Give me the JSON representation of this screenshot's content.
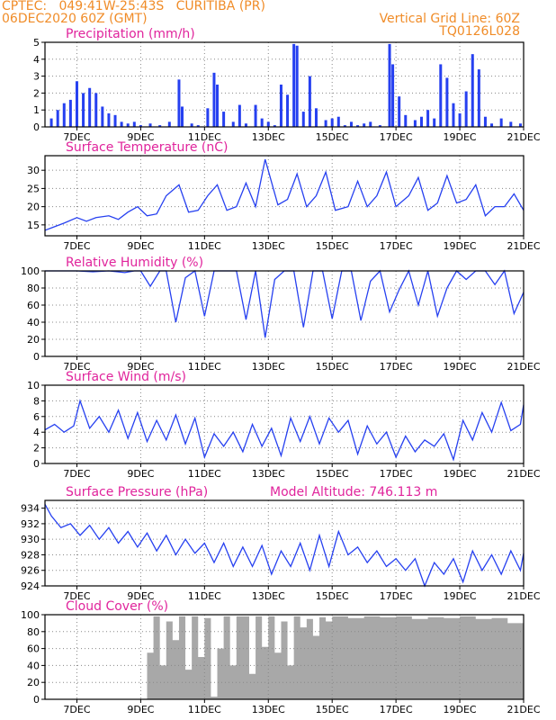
{
  "header": {
    "line1": "CPTEC:   049:41W-25:43S   CURITIBA (PR)",
    "line2": "06DEC2020 60Z (GMT)",
    "grid_label": "Vertical Grid Line: 60Z",
    "code": "TQ0126L028"
  },
  "colors": {
    "header": "#f08c28",
    "title": "#e0249c",
    "series": "#2640f0",
    "cloud": "#a8a8a8"
  },
  "x_axis": {
    "ticks": [
      "7DEC",
      "9DEC",
      "11DEC",
      "13DEC",
      "15DEC",
      "17DEC",
      "19DEC",
      "21DEC"
    ],
    "tick_days": [
      7,
      9,
      11,
      13,
      15,
      17,
      19,
      21
    ],
    "xlim": [
      6.0,
      21.0
    ]
  },
  "chart_data": [
    {
      "type": "bar",
      "title": "Precipitation (mm/h)",
      "ylim": [
        0,
        5
      ],
      "yticks": [
        0,
        1,
        2,
        3,
        4,
        5
      ],
      "grid": true,
      "x": [
        6.2,
        6.4,
        6.6,
        6.8,
        7.0,
        7.2,
        7.4,
        7.6,
        7.8,
        8.0,
        8.2,
        8.4,
        8.6,
        8.8,
        9.0,
        9.3,
        9.6,
        9.9,
        10.2,
        10.3,
        10.6,
        10.8,
        11.1,
        11.3,
        11.4,
        11.6,
        11.9,
        12.1,
        12.3,
        12.6,
        12.8,
        13.0,
        13.2,
        13.4,
        13.6,
        13.8,
        13.9,
        14.1,
        14.3,
        14.5,
        14.8,
        15.0,
        15.2,
        15.4,
        15.6,
        15.8,
        16.0,
        16.2,
        16.5,
        16.8,
        16.9,
        17.1,
        17.3,
        17.6,
        17.8,
        18.0,
        18.2,
        18.4,
        18.6,
        18.8,
        19.0,
        19.2,
        19.4,
        19.6,
        19.8,
        20.0,
        20.3,
        20.6,
        20.9
      ],
      "values": [
        0.5,
        1.0,
        1.4,
        1.6,
        2.7,
        2.0,
        2.3,
        2.0,
        1.2,
        0.8,
        0.7,
        0.3,
        0.2,
        0.3,
        0.1,
        0.2,
        0.1,
        0.3,
        2.8,
        1.2,
        0.2,
        0.1,
        1.1,
        3.2,
        2.5,
        0.9,
        0.3,
        1.3,
        0.2,
        1.3,
        0.5,
        0.3,
        0.1,
        2.5,
        1.9,
        4.9,
        4.8,
        0.9,
        3.0,
        1.1,
        0.4,
        0.5,
        0.6,
        0.1,
        0.3,
        0.1,
        0.2,
        0.3,
        0.1,
        4.9,
        3.7,
        1.8,
        0.7,
        0.4,
        0.6,
        1.0,
        0.5,
        3.7,
        2.9,
        1.4,
        0.8,
        2.1,
        4.3,
        3.4,
        0.6,
        0.2,
        0.5,
        0.3,
        0.2
      ]
    },
    {
      "type": "line",
      "title": "Surface Temperature (nC)",
      "ylim": [
        12,
        34
      ],
      "yticks": [
        15,
        20,
        25,
        30
      ],
      "grid": true,
      "x": [
        6.0,
        6.3,
        6.6,
        7.0,
        7.3,
        7.6,
        8.0,
        8.3,
        8.6,
        8.9,
        9.2,
        9.5,
        9.8,
        10.2,
        10.5,
        10.8,
        11.1,
        11.4,
        11.7,
        12.0,
        12.3,
        12.6,
        12.9,
        13.3,
        13.6,
        13.9,
        14.2,
        14.5,
        14.8,
        15.1,
        15.5,
        15.8,
        16.1,
        16.4,
        16.7,
        17.0,
        17.4,
        17.7,
        18.0,
        18.3,
        18.6,
        18.9,
        19.2,
        19.5,
        19.8,
        20.1,
        20.4,
        20.7,
        21.0
      ],
      "values": [
        13.5,
        14.5,
        15.5,
        17,
        16,
        17,
        17.5,
        16.5,
        18.5,
        20,
        17.5,
        18,
        23,
        26,
        18.5,
        19,
        23,
        26,
        19,
        20,
        26.5,
        20,
        33,
        20.5,
        22,
        29,
        20,
        23,
        29.5,
        19,
        20,
        27,
        20,
        23,
        29.5,
        20,
        23,
        28,
        19,
        21,
        28.5,
        21,
        22,
        26,
        17.5,
        20,
        20,
        23.5,
        19
      ]
    },
    {
      "type": "line",
      "title": "Relative Humidity (%)",
      "ylim": [
        0,
        100
      ],
      "yticks": [
        0,
        20,
        40,
        60,
        80,
        100
      ],
      "grid": true,
      "x": [
        6.0,
        6.5,
        7.0,
        7.5,
        8.0,
        8.5,
        8.8,
        9.0,
        9.3,
        9.6,
        9.8,
        10.1,
        10.4,
        10.7,
        11.0,
        11.3,
        11.6,
        12.0,
        12.3,
        12.6,
        12.9,
        13.2,
        13.5,
        13.8,
        14.1,
        14.4,
        14.7,
        15.0,
        15.3,
        15.6,
        15.9,
        16.2,
        16.5,
        16.8,
        17.1,
        17.4,
        17.7,
        18.0,
        18.3,
        18.6,
        18.9,
        19.2,
        19.5,
        19.8,
        20.1,
        20.4,
        20.7,
        21.0
      ],
      "values": [
        100,
        100,
        100,
        99,
        100,
        98,
        100,
        100,
        82,
        100,
        100,
        40,
        92,
        100,
        47,
        100,
        100,
        100,
        43,
        100,
        22,
        90,
        100,
        100,
        34,
        100,
        100,
        44,
        100,
        100,
        42,
        88,
        100,
        52,
        78,
        100,
        60,
        100,
        47,
        80,
        100,
        90,
        100,
        100,
        84,
        100,
        50,
        75
      ]
    },
    {
      "type": "line",
      "title": "Surface Wind (m/s)",
      "ylim": [
        0,
        10
      ],
      "yticks": [
        0,
        2,
        4,
        6,
        8,
        10
      ],
      "grid": true,
      "x": [
        6.0,
        6.3,
        6.6,
        6.9,
        7.1,
        7.4,
        7.7,
        8.0,
        8.3,
        8.6,
        8.9,
        9.2,
        9.5,
        9.8,
        10.1,
        10.4,
        10.7,
        11.0,
        11.3,
        11.6,
        11.9,
        12.2,
        12.5,
        12.8,
        13.1,
        13.4,
        13.7,
        14.0,
        14.3,
        14.6,
        14.9,
        15.2,
        15.5,
        15.8,
        16.1,
        16.4,
        16.7,
        17.0,
        17.3,
        17.6,
        17.9,
        18.2,
        18.5,
        18.8,
        19.1,
        19.4,
        19.7,
        20.0,
        20.3,
        20.6,
        20.9,
        21.0
      ],
      "values": [
        4.3,
        5.0,
        4.0,
        4.8,
        8.0,
        4.5,
        6.0,
        4.0,
        6.8,
        3.2,
        6.5,
        2.8,
        5.5,
        3.0,
        6.2,
        2.5,
        5.8,
        0.8,
        3.8,
        2.2,
        4.0,
        1.5,
        5.0,
        2.2,
        4.5,
        1.0,
        5.8,
        2.8,
        6.0,
        2.5,
        5.8,
        4.0,
        5.5,
        1.2,
        4.8,
        2.5,
        4.0,
        0.8,
        3.5,
        1.5,
        3.0,
        2.2,
        3.8,
        0.5,
        5.5,
        3.0,
        6.5,
        4.0,
        7.8,
        4.2,
        5.0,
        7.5
      ]
    },
    {
      "type": "line",
      "title": "Surface Pressure (hPa)",
      "annotation": "Model Altitude: 746.113 m",
      "ylim": [
        924,
        935
      ],
      "yticks": [
        924,
        926,
        928,
        930,
        932,
        934
      ],
      "grid": true,
      "x": [
        6.0,
        6.2,
        6.5,
        6.8,
        7.1,
        7.4,
        7.7,
        8.0,
        8.3,
        8.6,
        8.9,
        9.2,
        9.5,
        9.8,
        10.1,
        10.4,
        10.7,
        11.0,
        11.3,
        11.6,
        11.9,
        12.2,
        12.5,
        12.8,
        13.1,
        13.4,
        13.7,
        14.0,
        14.3,
        14.6,
        14.9,
        15.2,
        15.5,
        15.8,
        16.1,
        16.4,
        16.7,
        17.0,
        17.3,
        17.6,
        17.9,
        18.2,
        18.5,
        18.8,
        19.1,
        19.4,
        19.7,
        20.0,
        20.3,
        20.6,
        20.9,
        21.0
      ],
      "values": [
        934.5,
        933.0,
        931.5,
        932.0,
        930.5,
        931.8,
        930.0,
        931.5,
        929.5,
        931.0,
        929.0,
        930.8,
        928.5,
        930.5,
        928.0,
        930.0,
        928.2,
        929.5,
        927.0,
        929.5,
        926.5,
        929.0,
        926.5,
        929.2,
        925.5,
        928.5,
        926.5,
        929.5,
        926.0,
        930.5,
        926.5,
        931.0,
        928.0,
        929.0,
        927.0,
        928.5,
        926.5,
        927.5,
        926.0,
        927.5,
        924.0,
        927.0,
        925.5,
        927.5,
        924.5,
        928.5,
        926.0,
        928.0,
        925.5,
        928.5,
        926.0,
        928.2
      ]
    },
    {
      "type": "area",
      "title": "Cloud Cover (%)",
      "ylim": [
        0,
        100
      ],
      "yticks": [
        0,
        20,
        40,
        60,
        80,
        100
      ],
      "grid": true,
      "x": [
        6.0,
        9.0,
        9.2,
        9.4,
        9.6,
        9.8,
        10.0,
        10.2,
        10.4,
        10.6,
        10.8,
        11.0,
        11.2,
        11.4,
        11.6,
        11.8,
        12.0,
        12.2,
        12.4,
        12.6,
        12.8,
        13.0,
        13.2,
        13.4,
        13.6,
        13.8,
        14.0,
        14.2,
        14.4,
        14.6,
        14.8,
        15.0,
        15.5,
        16.0,
        16.5,
        17.0,
        17.5,
        18.0,
        18.5,
        19.0,
        19.5,
        20.0,
        20.5,
        21.0
      ],
      "values": [
        0,
        0,
        55,
        98,
        40,
        92,
        70,
        98,
        35,
        98,
        50,
        96,
        3,
        60,
        98,
        40,
        98,
        98,
        30,
        98,
        62,
        98,
        55,
        92,
        40,
        98,
        85,
        95,
        75,
        97,
        92,
        98,
        96,
        98,
        97,
        98,
        95,
        97,
        96,
        98,
        95,
        96,
        90,
        88
      ]
    }
  ]
}
